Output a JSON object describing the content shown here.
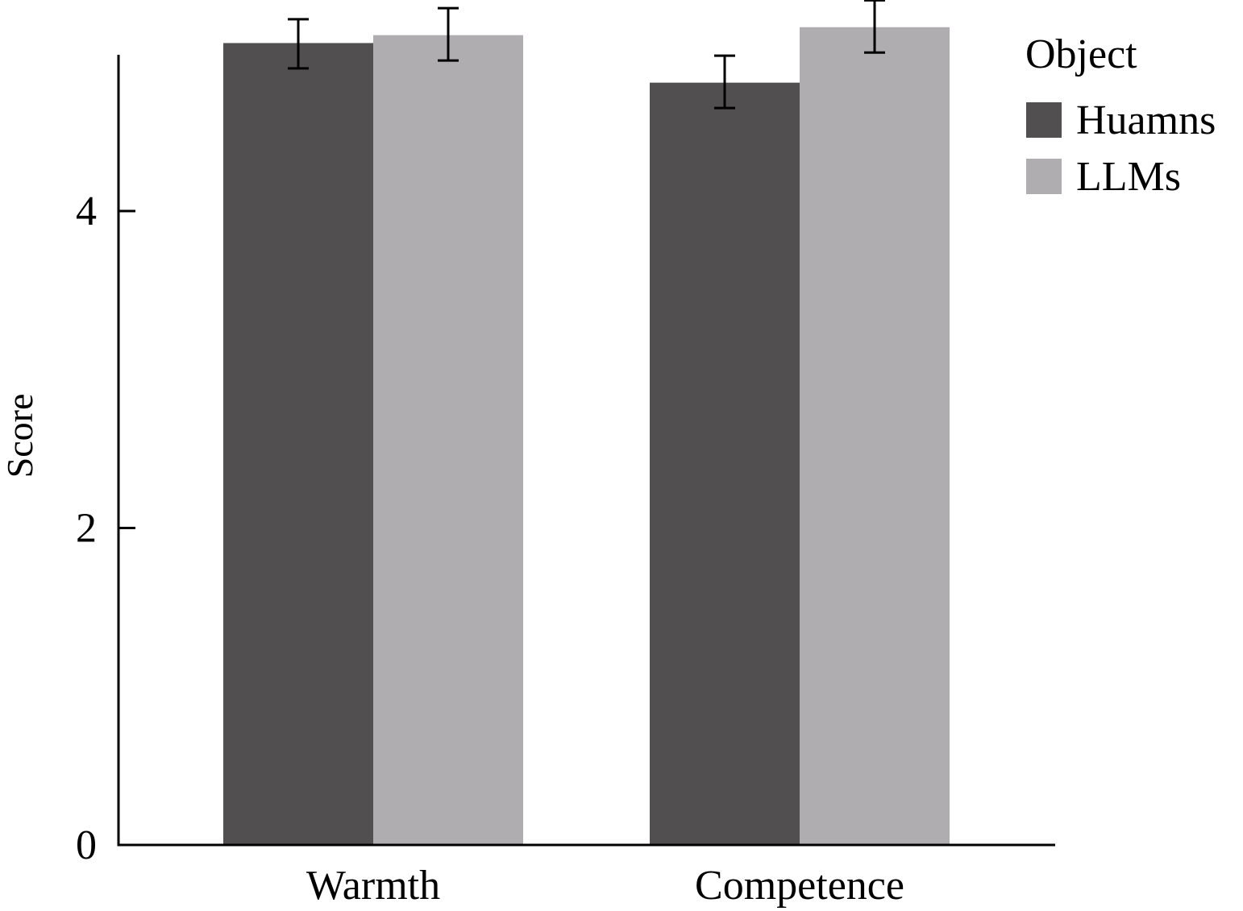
{
  "chart_data": {
    "type": "bar",
    "title": "",
    "xlabel": "",
    "ylabel": "Score",
    "ylim": [
      0,
      5.0
    ],
    "yticks": [
      "0",
      "2",
      "4"
    ],
    "ytick_values": [
      0,
      2,
      4
    ],
    "categories": [
      "Warmth",
      "Competence"
    ],
    "legend": {
      "title": "Object",
      "placement": "top-right"
    },
    "series": [
      {
        "name": "Huamns",
        "color": "#514f50",
        "values": [
          5.06,
          4.81
        ],
        "error_low": [
          4.9,
          4.65
        ],
        "error_high": [
          5.21,
          4.98
        ]
      },
      {
        "name": "LLMs",
        "color": "#afadaf",
        "values": [
          5.11,
          5.16
        ],
        "error_low": [
          4.95,
          5.0
        ],
        "error_high": [
          5.28,
          5.33
        ]
      }
    ],
    "grid": false
  }
}
